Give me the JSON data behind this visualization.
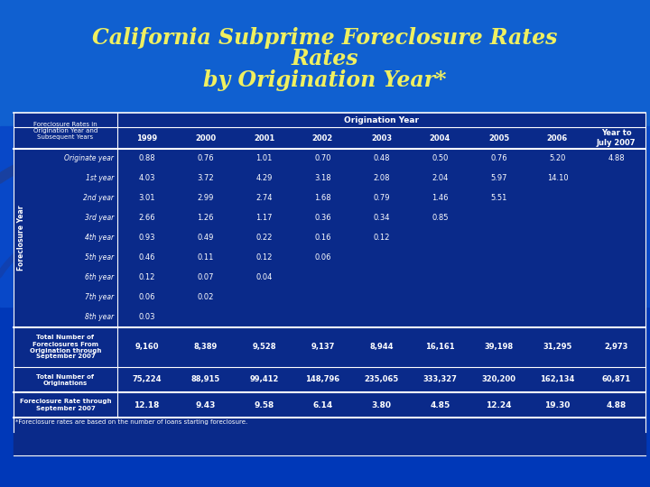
{
  "title_line1": "California Subprime Foreclosure Rates",
  "title_line2": "by Origination Year*",
  "bg_color_top": "#1060d0",
  "bg_color_bot": "#0030a0",
  "title_color": "#f0f060",
  "origination_years": [
    "1999",
    "2000",
    "2001",
    "2002",
    "2003",
    "2004",
    "2005",
    "2006",
    "Year to\nJuly 2007"
  ],
  "row_headers": [
    "Originate year",
    "1st year",
    "2nd year",
    "3rd year",
    "4th year",
    "5th year",
    "6th year",
    "7th year",
    "8th year"
  ],
  "foreclosure_data": [
    [
      "0.88",
      "0.76",
      "1.01",
      "0.70",
      "0.48",
      "0.50",
      "0.76",
      "5.20",
      "4.88"
    ],
    [
      "4.03",
      "3.72",
      "4.29",
      "3.18",
      "2.08",
      "2.04",
      "5.97",
      "14.10",
      ""
    ],
    [
      "3.01",
      "2.99",
      "2.74",
      "1.68",
      "0.79",
      "1.46",
      "5.51",
      "",
      ""
    ],
    [
      "2.66",
      "1.26",
      "1.17",
      "0.36",
      "0.34",
      "0.85",
      "",
      "",
      ""
    ],
    [
      "0.93",
      "0.49",
      "0.22",
      "0.16",
      "0.12",
      "",
      "",
      "",
      ""
    ],
    [
      "0.46",
      "0.11",
      "0.12",
      "0.06",
      "",
      "",
      "",
      "",
      ""
    ],
    [
      "0.12",
      "0.07",
      "0.04",
      "",
      "",
      "",
      "",
      "",
      ""
    ],
    [
      "0.06",
      "0.02",
      "",
      "",
      "",
      "",
      "",
      "",
      ""
    ],
    [
      "0.03",
      "",
      "",
      "",
      "",
      "",
      "",
      "",
      ""
    ]
  ],
  "total_foreclosures_label": "Total Number of\nForeclosures From\nOrigination through\nSeptember 2007",
  "total_foreclosures": [
    "9,160",
    "8,389",
    "9,528",
    "9,137",
    "8,944",
    "16,161",
    "39,198",
    "31,295",
    "2,973"
  ],
  "total_originations_label": "Total Number of\nOriginations",
  "total_originations": [
    "75,224",
    "88,915",
    "99,412",
    "148,796",
    "235,065",
    "333,327",
    "320,200",
    "162,134",
    "60,871"
  ],
  "foreclosure_rate_label": "Foreclosure Rate through\nSeptember 2007",
  "foreclosure_rates": [
    "12.18",
    "9.43",
    "9.58",
    "6.14",
    "3.80",
    "4.85",
    "12.24",
    "19.30",
    "4.88"
  ],
  "footnote": "*Foreclosure rates are based on the number of loans starting foreclosure.",
  "col_header_label": "Foreclosure Rates in\nOrigination Year and\nSubsequent Years",
  "origination_year_header": "Origination Year",
  "foreclosure_year_label": "Foreclosure Year"
}
